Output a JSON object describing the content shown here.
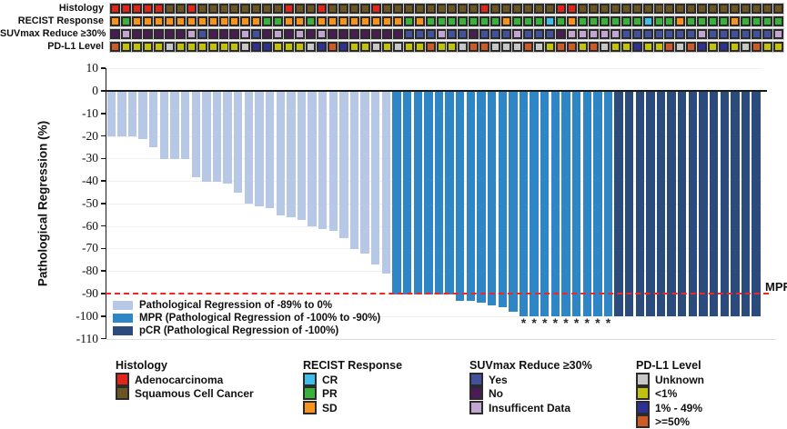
{
  "palette": {
    "histology": {
      "A": "#e1251b",
      "S": "#6b5523"
    },
    "recist": {
      "O": "#f6921e",
      "G": "#3bb03a",
      "C": "#41bde9"
    },
    "suvmax": {
      "Y": "#41519e",
      "N": "#4c1a55",
      "I": "#c2a6d1"
    },
    "pdl1": {
      "U": "#c7c7c7",
      "L": "#c2c10f",
      "M": "#2e3192",
      "H": "#cd5b27"
    },
    "bars": {
      "light": "#b7c8e6",
      "mpr": "#2f86c7",
      "pcr": "#2a4b7c"
    },
    "threshold_line": "#ee2724",
    "axis": "#1a1a1a"
  },
  "chart_data": {
    "type": "bar",
    "subtype": "waterfall",
    "title": "",
    "xlabel": "",
    "ylabel": "Pathological Regression (%)",
    "ylim": [
      -110,
      10
    ],
    "yticks": [
      10,
      0,
      -10,
      -20,
      -30,
      -40,
      -50,
      -60,
      -70,
      -80,
      -90,
      -100,
      -110
    ],
    "grid": "faint horizontal",
    "n_patients": 62,
    "values": [
      -20,
      -20,
      -20,
      -21,
      -25,
      -30,
      -30,
      -30,
      -38,
      -40,
      -40,
      -41,
      -45,
      -50,
      -51,
      -52,
      -55,
      -56,
      -57,
      -60,
      -61,
      -62,
      -65,
      -70,
      -72,
      -77,
      -81,
      -90,
      -90,
      -90,
      -90,
      -90,
      -90,
      -93,
      -93,
      -94,
      -95,
      -96,
      -98,
      -100,
      -100,
      -100,
      -100,
      -100,
      -100,
      -100,
      -100,
      -100,
      -100,
      -100,
      -100,
      -100,
      -100,
      -100,
      -100,
      -100,
      -100,
      -100,
      -100,
      -100,
      -100,
      -100
    ],
    "group_counts": {
      "regression": 27,
      "mpr": 21,
      "pcr": 14
    },
    "asterisk_bars": [
      40,
      41,
      42,
      43,
      44,
      45,
      46,
      47,
      48
    ],
    "threshold_value": -90,
    "threshold_label": "MPR",
    "annotation_tracks": [
      {
        "key": "histology",
        "label": "Histology",
        "palette_key": "histology",
        "cells": "AAAAASSASSSSSSSSASSASSSSASSSSSSSSSASSSSSSAASSSSSSSSSSSSSSSSSSS"
      },
      {
        "key": "recist",
        "label": "RECIST Response",
        "palette_key": "recist",
        "cells": "OGOOOOOOOOOOOOGGOOGOOOOOOOOGOGGGGGGGOGGGCGOGGGGGGCGGOGGGGOGGGG"
      },
      {
        "key": "suvmax",
        "label": "SUVmax Reduce ≥30%",
        "palette_key": "suvmax",
        "cells": "NINNNNNIYNNNIYNINININNNNNNNYYYIYYNYYYIYYYNIIIIIYYYYYYYIYYYYYYI"
      },
      {
        "key": "pdl1",
        "label": "PD-L1 Level",
        "palette_key": "pdl1",
        "cells": "HLLLLULLLLLLUMMLLLUMHMLLULULLHLLUHHUUUHULHHLHULLMLLHUHMLMLUHLL"
      }
    ]
  },
  "plot_legend": [
    {
      "label": "Pathological Regression of -89% to 0%",
      "color_key": "light"
    },
    {
      "label": "MPR (Pathological Regression of -100% to -90%)",
      "color_key": "mpr"
    },
    {
      "label": "pCR (Pathological Regression of -100%)",
      "color_key": "pcr"
    }
  ],
  "legends": [
    {
      "title": "Histology",
      "items": [
        {
          "label": "Adenocarcinoma",
          "color": "#e1251b"
        },
        {
          "label": "Squamous Cell Cancer",
          "color": "#6b5523"
        }
      ]
    },
    {
      "title": "RECIST Response",
      "items": [
        {
          "label": "CR",
          "color": "#41bde9"
        },
        {
          "label": "PR",
          "color": "#3bb03a"
        },
        {
          "label": "SD",
          "color": "#f6921e"
        }
      ]
    },
    {
      "title": "SUVmax Reduce ≥30%",
      "items": [
        {
          "label": "Yes",
          "color": "#41519e"
        },
        {
          "label": "No",
          "color": "#4c1a55"
        },
        {
          "label": "Insufficent Data",
          "color": "#c2a6d1"
        }
      ]
    },
    {
      "title": "PD-L1 Level",
      "items": [
        {
          "label": "Unknown",
          "color": "#c7c7c7"
        },
        {
          "label": "<1%",
          "color": "#c2c10f"
        },
        {
          "label": "1% - 49%",
          "color": "#2e3192"
        },
        {
          "label": ">=50%",
          "color": "#cd5b27"
        }
      ]
    }
  ]
}
